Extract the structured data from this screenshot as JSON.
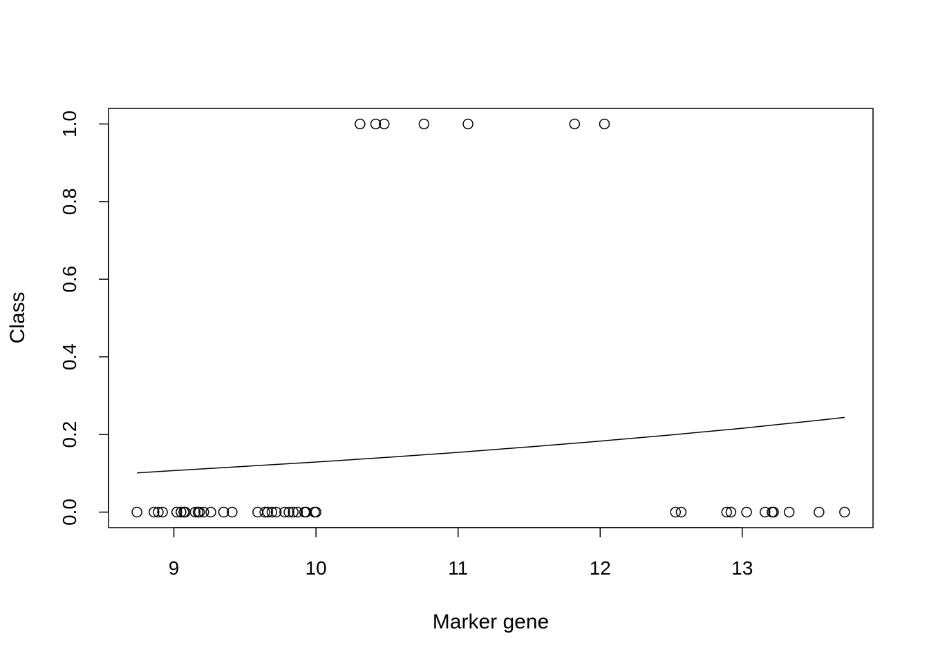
{
  "chart_data": {
    "type": "scatter",
    "title": "",
    "xlabel": "Marker gene",
    "ylabel": "Class",
    "xlim": [
      8.54,
      13.92
    ],
    "ylim": [
      -0.04,
      1.04
    ],
    "x_ticks": [
      9,
      10,
      11,
      12,
      13
    ],
    "x_tick_labels": [
      "9",
      "10",
      "11",
      "12",
      "13"
    ],
    "y_ticks": [
      0,
      0.2,
      0.4,
      0.6,
      0.8,
      1.0
    ],
    "y_tick_labels": [
      "0.0",
      "0.2",
      "0.4",
      "0.6",
      "0.8",
      "1.0"
    ],
    "grid": false,
    "points": {
      "x": [
        8.74,
        8.86,
        8.89,
        8.92,
        9.02,
        9.05,
        9.07,
        9.08,
        9.15,
        9.17,
        9.18,
        9.21,
        9.26,
        9.35,
        9.41,
        9.59,
        9.64,
        9.66,
        9.69,
        9.72,
        9.78,
        9.81,
        9.84,
        9.87,
        9.92,
        9.93,
        9.99,
        10.0,
        12.53,
        12.57,
        12.89,
        12.92,
        13.03,
        13.16,
        13.21,
        13.22,
        13.33,
        13.54,
        13.72,
        10.31,
        10.42,
        10.48,
        10.76,
        11.07,
        11.82,
        12.03
      ],
      "y": [
        0,
        0,
        0,
        0,
        0,
        0,
        0,
        0,
        0,
        0,
        0,
        0,
        0,
        0,
        0,
        0,
        0,
        0,
        0,
        0,
        0,
        0,
        0,
        0,
        0,
        0,
        0,
        0,
        0,
        0,
        0,
        0,
        0,
        0,
        0,
        0,
        0,
        0,
        0,
        1,
        1,
        1,
        1,
        1,
        1,
        1
      ]
    },
    "fitted_curve": {
      "x": [
        8.74,
        9.0,
        9.5,
        10.0,
        10.5,
        11.0,
        11.5,
        12.0,
        12.5,
        13.0,
        13.5,
        13.72
      ],
      "y": [
        0.101,
        0.107,
        0.118,
        0.129,
        0.141,
        0.154,
        0.168,
        0.183,
        0.199,
        0.216,
        0.235,
        0.244
      ]
    }
  }
}
